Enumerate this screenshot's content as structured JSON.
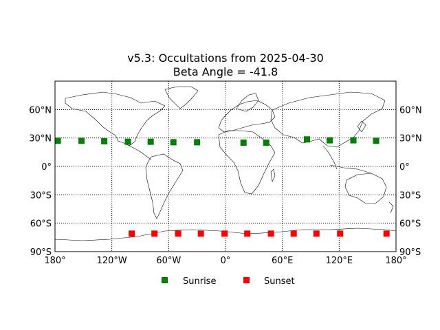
{
  "chart_data": {
    "type": "scatter",
    "title": "v5.3: Occultations from 2025-04-30",
    "subtitle": "Beta Angle = -41.8",
    "xlim": [
      -180,
      180
    ],
    "ylim": [
      -90,
      90
    ],
    "grid": true,
    "x_ticks": [
      -180,
      -120,
      -60,
      0,
      60,
      120,
      180
    ],
    "x_tick_labels": [
      "180°",
      "120°W",
      "60°W",
      "0°",
      "60°E",
      "120°E",
      "180°"
    ],
    "y_ticks": [
      -90,
      -60,
      -30,
      0,
      30,
      60
    ],
    "y_tick_labels": [
      "90°S",
      "60°S",
      "30°S",
      "0°",
      "30°N",
      "60°N"
    ],
    "legend_position": "bottom-center",
    "series": [
      {
        "name": "Sunrise",
        "color": "#008000",
        "marker": "square",
        "points": [
          [
            -177,
            27
          ],
          [
            -152,
            27
          ],
          [
            -128,
            26.5
          ],
          [
            -103,
            26
          ],
          [
            -79,
            26
          ],
          [
            -55,
            25.5
          ],
          [
            -30,
            25.5
          ],
          [
            19,
            25
          ],
          [
            43,
            25
          ],
          [
            86,
            28.5
          ],
          [
            110,
            27.5
          ],
          [
            135,
            27.5
          ],
          [
            159,
            27
          ]
        ]
      },
      {
        "name": "Sunset",
        "color": "#ff0000",
        "marker": "square",
        "points": [
          [
            -99,
            -71
          ],
          [
            -75,
            -71
          ],
          [
            -50,
            -71
          ],
          [
            -26,
            -71
          ],
          [
            -1,
            -71
          ],
          [
            23,
            -71
          ],
          [
            48,
            -71
          ],
          [
            72,
            -71
          ],
          [
            96,
            -71
          ],
          [
            121,
            -71
          ],
          [
            170,
            -71
          ]
        ]
      }
    ]
  }
}
